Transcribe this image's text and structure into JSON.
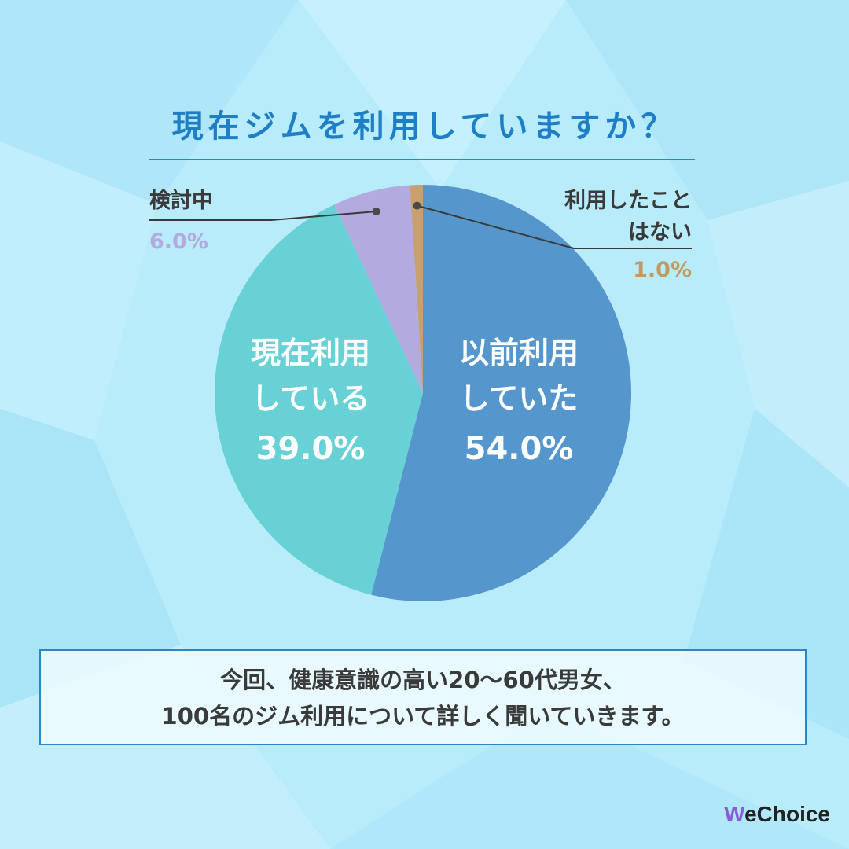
{
  "title": "現在ジムを利用していますか？",
  "chart_data": {
    "type": "pie",
    "title": "現在ジムを利用していますか？",
    "slices": [
      {
        "label": "以前利用していた",
        "label_lines": [
          "以前利用",
          "していた"
        ],
        "value": 54.0,
        "pct": "54.0%",
        "color": "#5596cc"
      },
      {
        "label": "現在利用している",
        "label_lines": [
          "現在利用",
          "している"
        ],
        "value": 39.0,
        "pct": "39.0%",
        "color": "#67d1d6"
      },
      {
        "label": "検討中",
        "label_lines": [
          "検討中"
        ],
        "value": 6.0,
        "pct": "6.0%",
        "color": "#b3abe0"
      },
      {
        "label": "利用したことはない",
        "label_lines": [
          "利用したこと",
          "はない"
        ],
        "value": 1.0,
        "pct": "1.0%",
        "color": "#c9a06d"
      }
    ]
  },
  "note": {
    "line1": "今回、健康意識の高い20〜60代男女、",
    "line2": "100名のジム利用について詳しく聞いていきます。"
  },
  "brand": {
    "w": "W",
    "rest": "eChoice",
    "accent": "#8a5bd6"
  }
}
